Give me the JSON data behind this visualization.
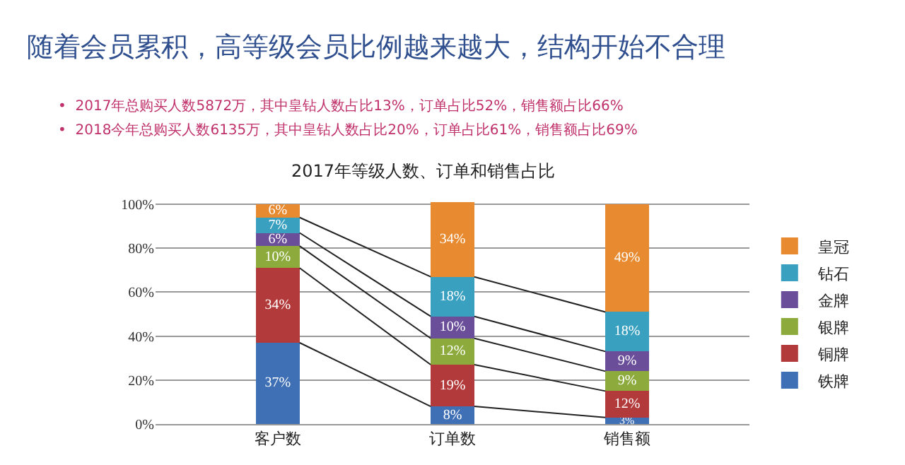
{
  "chart_data": {
    "type": "bar",
    "stacked": true,
    "title": "随着会员累积，高等级会员比例越来越大，结构开始不合理",
    "subtitle": "2017年等级人数、订单和销售占比",
    "annotations": [
      "•  2017年总购买人数5872万，其中皇钻人数占比13%，订单占比52%，销售额占比66%",
      "•  2018今年总购买人数6135万，其中皇钻人数占比20%，订单占比61%，销售额占比69%"
    ],
    "categories": [
      "客户数",
      "订单数",
      "销售额"
    ],
    "series": [
      {
        "name": "铁牌",
        "color": "#3f6fb5",
        "values": [
          37,
          8,
          3
        ],
        "value_labels": [
          "37%",
          "8%",
          "3%"
        ]
      },
      {
        "name": "铜牌",
        "color": "#b23a3a",
        "values": [
          34,
          19,
          12
        ],
        "value_labels": [
          "34%",
          "19%",
          "12%"
        ]
      },
      {
        "name": "银牌",
        "color": "#8cab3c",
        "values": [
          10,
          12,
          9
        ],
        "value_labels": [
          "10%",
          "12%",
          "9%"
        ]
      },
      {
        "name": "金牌",
        "color": "#6a4e9a",
        "values": [
          6,
          10,
          9
        ],
        "value_labels": [
          "6%",
          "10%",
          "9%"
        ]
      },
      {
        "name": "钻石",
        "color": "#3aa0c0",
        "values": [
          7,
          18,
          18
        ],
        "value_labels": [
          "7%",
          "18%",
          "18%"
        ]
      },
      {
        "name": "皇冠",
        "color": "#e88a30",
        "values": [
          6,
          34,
          49
        ],
        "value_labels": [
          "6%",
          "34%",
          "49%"
        ]
      }
    ],
    "ylim": [
      0,
      101
    ],
    "yticks": [
      {
        "value": 0,
        "label": "0%"
      },
      {
        "value": 20,
        "label": "20%"
      },
      {
        "value": 40,
        "label": "40%"
      },
      {
        "value": 60,
        "label": "60%"
      },
      {
        "value": 80,
        "label": "80%"
      },
      {
        "value": 100,
        "label": "100%"
      }
    ],
    "grid": "y",
    "legend": "right"
  }
}
